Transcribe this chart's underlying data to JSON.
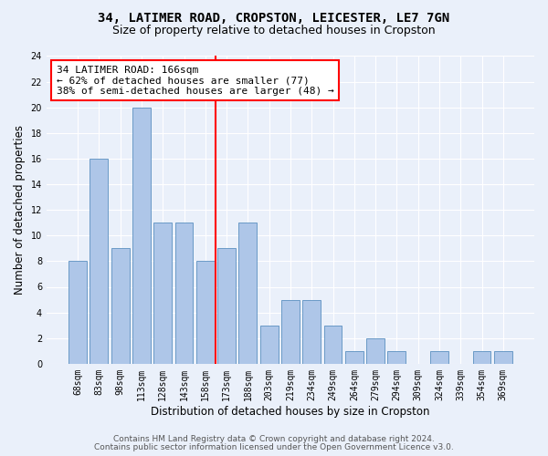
{
  "title": "34, LATIMER ROAD, CROPSTON, LEICESTER, LE7 7GN",
  "subtitle": "Size of property relative to detached houses in Cropston",
  "xlabel": "Distribution of detached houses by size in Cropston",
  "ylabel": "Number of detached properties",
  "categories": [
    "68sqm",
    "83sqm",
    "98sqm",
    "113sqm",
    "128sqm",
    "143sqm",
    "158sqm",
    "173sqm",
    "188sqm",
    "203sqm",
    "219sqm",
    "234sqm",
    "249sqm",
    "264sqm",
    "279sqm",
    "294sqm",
    "309sqm",
    "324sqm",
    "339sqm",
    "354sqm",
    "369sqm"
  ],
  "values": [
    8,
    16,
    9,
    20,
    11,
    11,
    8,
    9,
    11,
    3,
    5,
    5,
    3,
    1,
    2,
    1,
    0,
    1,
    0,
    1,
    1
  ],
  "bar_color": "#aec6e8",
  "bar_edgecolor": "#5a8fc0",
  "redline_index": 7,
  "annotation_line1": "34 LATIMER ROAD: 166sqm",
  "annotation_line2": "← 62% of detached houses are smaller (77)",
  "annotation_line3": "38% of semi-detached houses are larger (48) →",
  "annotation_box_color": "white",
  "annotation_box_edgecolor": "red",
  "redline_color": "red",
  "ylim": [
    0,
    24
  ],
  "yticks": [
    0,
    2,
    4,
    6,
    8,
    10,
    12,
    14,
    16,
    18,
    20,
    22,
    24
  ],
  "footer1": "Contains HM Land Registry data © Crown copyright and database right 2024.",
  "footer2": "Contains public sector information licensed under the Open Government Licence v3.0.",
  "bg_color": "#eaf0fa",
  "grid_color": "white",
  "title_fontsize": 10,
  "subtitle_fontsize": 9,
  "axis_label_fontsize": 8.5,
  "tick_fontsize": 7,
  "annotation_fontsize": 8,
  "footer_fontsize": 6.5
}
